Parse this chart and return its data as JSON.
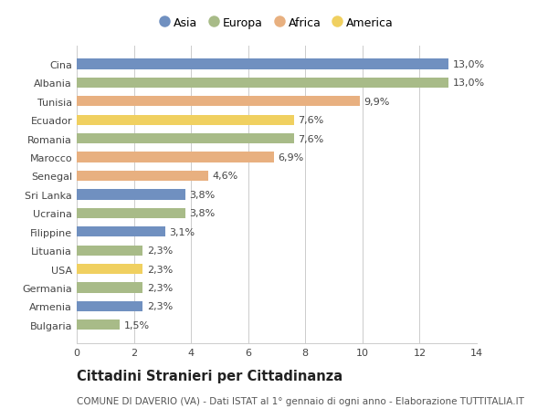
{
  "countries": [
    "Cina",
    "Albania",
    "Tunisia",
    "Ecuador",
    "Romania",
    "Marocco",
    "Senegal",
    "Sri Lanka",
    "Ucraina",
    "Filippine",
    "Lituania",
    "USA",
    "Germania",
    "Armenia",
    "Bulgaria"
  ],
  "values": [
    13.0,
    13.0,
    9.9,
    7.6,
    7.6,
    6.9,
    4.6,
    3.8,
    3.8,
    3.1,
    2.3,
    2.3,
    2.3,
    2.3,
    1.5
  ],
  "labels": [
    "13,0%",
    "13,0%",
    "9,9%",
    "7,6%",
    "7,6%",
    "6,9%",
    "4,6%",
    "3,8%",
    "3,8%",
    "3,1%",
    "2,3%",
    "2,3%",
    "2,3%",
    "2,3%",
    "1,5%"
  ],
  "continents": [
    "Asia",
    "Europa",
    "Africa",
    "America",
    "Europa",
    "Africa",
    "Africa",
    "Asia",
    "Europa",
    "Asia",
    "Europa",
    "America",
    "Europa",
    "Asia",
    "Europa"
  ],
  "continent_colors": {
    "Asia": "#7090c0",
    "Europa": "#a8bb88",
    "Africa": "#e8b080",
    "America": "#f0d060"
  },
  "legend_order": [
    "Asia",
    "Europa",
    "Africa",
    "America"
  ],
  "xlim": [
    0,
    14
  ],
  "xticks": [
    0,
    2,
    4,
    6,
    8,
    10,
    12,
    14
  ],
  "title": "Cittadini Stranieri per Cittadinanza",
  "subtitle": "COMUNE DI DAVERIO (VA) - Dati ISTAT al 1° gennaio di ogni anno - Elaborazione TUTTITALIA.IT",
  "bg_color": "#ffffff",
  "grid_color": "#cccccc",
  "bar_height": 0.55,
  "label_fontsize": 8,
  "title_fontsize": 10.5,
  "subtitle_fontsize": 7.5,
  "tick_fontsize": 8
}
